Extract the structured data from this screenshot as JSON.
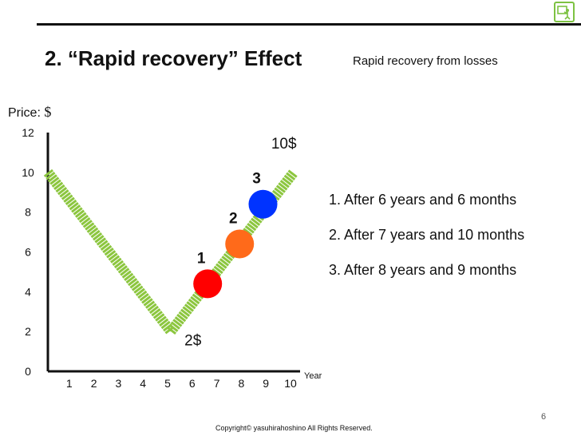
{
  "header": {
    "title": "2. “Rapid recovery” Effect",
    "subtitle": "Rapid recovery from losses",
    "logo_icon": "presenter-icon"
  },
  "chart_data": {
    "type": "line",
    "ylabel_prefix": "Price:",
    "ylabel_unit": "$",
    "xlabel": "Year",
    "xlim": [
      0,
      10
    ],
    "ylim": [
      0,
      12
    ],
    "x_ticks": [
      1,
      2,
      3,
      4,
      5,
      6,
      7,
      8,
      9,
      10
    ],
    "y_ticks": [
      0,
      2,
      4,
      6,
      8,
      10,
      12
    ],
    "series": [
      {
        "x": [
          0,
          5,
          10
        ],
        "y": [
          10,
          2,
          10
        ],
        "color": "#8cc63f"
      }
    ],
    "points": [
      {
        "label": "1",
        "x": 6.5,
        "y": 4.4,
        "color": "#ff0000"
      },
      {
        "label": "2",
        "x": 7.8,
        "y": 6.4,
        "color": "#ff6a1a"
      },
      {
        "label": "3",
        "x": 8.75,
        "y": 8.4,
        "color": "#0033ff"
      }
    ],
    "annotations": [
      {
        "text": "10$",
        "x": 9.6,
        "y": 11.2
      },
      {
        "text": "2$",
        "x": 5.9,
        "y": 1.3
      }
    ]
  },
  "notes": [
    "1. After 6 years and 6 months",
    "2. After 7 years and 10 months",
    "3. After 8 years and 9 months"
  ],
  "footer": {
    "page_number": "6",
    "copyright": "Copyright© yasuhirahoshino All Rights Reserved."
  }
}
